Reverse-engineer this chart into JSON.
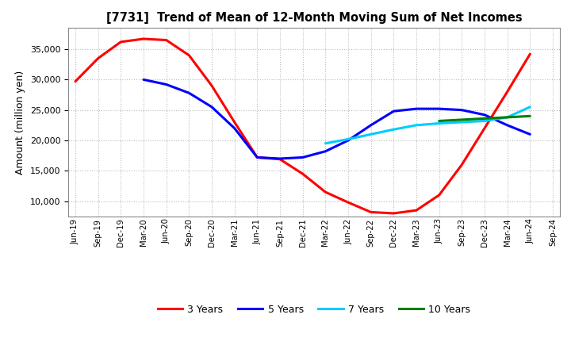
{
  "title": "[7731]  Trend of Mean of 12-Month Moving Sum of Net Incomes",
  "ylabel": "Amount (million yen)",
  "x_labels": [
    "Jun-19",
    "Sep-19",
    "Dec-19",
    "Mar-20",
    "Jun-20",
    "Sep-20",
    "Dec-20",
    "Mar-21",
    "Jun-21",
    "Sep-21",
    "Dec-21",
    "Mar-22",
    "Jun-22",
    "Sep-22",
    "Dec-22",
    "Mar-23",
    "Jun-23",
    "Sep-23",
    "Dec-23",
    "Mar-24",
    "Jun-24",
    "Sep-24"
  ],
  "ylim": [
    7500,
    38500
  ],
  "yticks": [
    10000,
    15000,
    20000,
    25000,
    30000,
    35000
  ],
  "series": {
    "3 Years": {
      "color": "#FF0000",
      "x_indices": [
        0,
        1,
        2,
        3,
        4,
        5,
        6,
        7,
        8,
        9,
        10,
        11,
        12,
        13,
        14,
        15,
        16,
        17,
        18,
        19,
        20,
        21
      ],
      "values": [
        29700,
        33500,
        36200,
        36700,
        36500,
        34000,
        29000,
        23000,
        17200,
        16900,
        14500,
        11500,
        9800,
        8200,
        8000,
        8500,
        11000,
        16000,
        22000,
        28000,
        34200,
        null
      ]
    },
    "5 Years": {
      "color": "#0000FF",
      "x_indices": [
        3,
        4,
        5,
        6,
        7,
        8,
        9,
        10,
        11,
        12,
        13,
        14,
        15,
        16,
        17,
        18,
        19,
        20,
        21
      ],
      "values": [
        30000,
        29200,
        27800,
        25500,
        22000,
        17200,
        17000,
        17200,
        18200,
        20000,
        22500,
        24800,
        25200,
        25200,
        25000,
        24200,
        22500,
        21000,
        null
      ]
    },
    "7 Years": {
      "color": "#00CCFF",
      "x_indices": [
        11,
        12,
        13,
        14,
        15,
        16,
        17,
        18,
        19,
        20,
        21
      ],
      "values": [
        19500,
        20200,
        21000,
        21800,
        22500,
        22800,
        23000,
        23200,
        23800,
        25500,
        null
      ]
    },
    "10 Years": {
      "color": "#008000",
      "x_indices": [
        16,
        17,
        18,
        19,
        20,
        21
      ],
      "values": [
        23200,
        23400,
        23600,
        23800,
        24000,
        null
      ]
    }
  },
  "legend_labels": [
    "3 Years",
    "5 Years",
    "7 Years",
    "10 Years"
  ],
  "legend_colors": [
    "#FF0000",
    "#0000FF",
    "#00CCFF",
    "#008000"
  ],
  "background_color": "#FFFFFF",
  "grid_color": "#BBBBBB"
}
